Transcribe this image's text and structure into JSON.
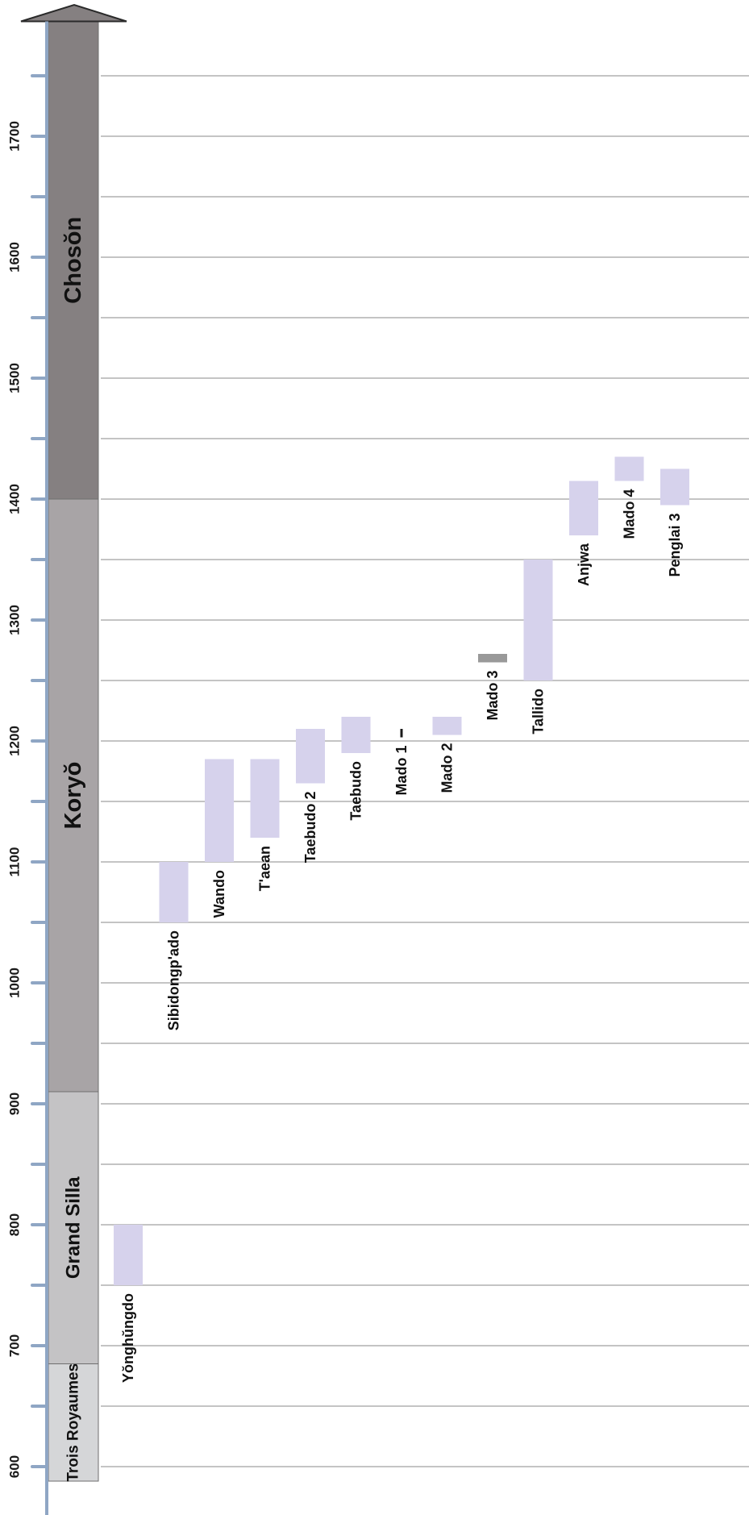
{
  "chart_data": {
    "type": "bar",
    "orientation": "floating-range",
    "ylim": [
      588,
      1845
    ],
    "y_ticks": [
      600,
      700,
      800,
      900,
      1000,
      1100,
      1200,
      1300,
      1400,
      1500,
      1600,
      1700
    ],
    "y_tick_labels": [
      "600",
      "700",
      "800",
      "900",
      "1000",
      "1100",
      "1200",
      "1300",
      "1400",
      "1500",
      "1600",
      "1700"
    ],
    "grid": true,
    "periods": [
      {
        "label": "Trois Royaumes",
        "start": 588,
        "end": 685,
        "color": "#d5d6d8"
      },
      {
        "label": "Grand Silla",
        "start": 685,
        "end": 910,
        "color": "#c4c3c5"
      },
      {
        "label": "Koryŏ",
        "start": 910,
        "end": 1400,
        "color": "#a8a4a6"
      },
      {
        "label": "Chosŏn",
        "start": 1400,
        "end": 1795,
        "color": "#858081"
      }
    ],
    "sites": [
      {
        "label": "Yŏnghŭngdo",
        "start": 750,
        "end": 800,
        "color": "#d6d2ec"
      },
      {
        "label": "Sibidongp'ado",
        "start": 1050,
        "end": 1100,
        "color": "#d6d2ec"
      },
      {
        "label": "Wando",
        "start": 1100,
        "end": 1185,
        "color": "#d6d2ec"
      },
      {
        "label": "T'aean",
        "start": 1120,
        "end": 1185,
        "color": "#d6d2ec"
      },
      {
        "label": "Taebudo 2",
        "start": 1165,
        "end": 1210,
        "color": "#d6d2ec"
      },
      {
        "label": "Taebudo",
        "start": 1190,
        "end": 1220,
        "color": "#d6d2ec"
      },
      {
        "label": "Mado 1",
        "start": 1203,
        "end": 1210,
        "color": "#1a1a1a"
      },
      {
        "label": "Mado 2",
        "start": 1205,
        "end": 1220,
        "color": "#d6d2ec"
      },
      {
        "label": "Mado 3",
        "start": 1265,
        "end": 1272,
        "color": "#8e8e8e"
      },
      {
        "label": "Tallido",
        "start": 1250,
        "end": 1350,
        "color": "#d6d2ec"
      },
      {
        "label": "Anjwa",
        "start": 1370,
        "end": 1415,
        "color": "#d6d2ec"
      },
      {
        "label": "Mado 4",
        "start": 1415,
        "end": 1435,
        "color": "#d6d2ec"
      },
      {
        "label": "Penglai 3",
        "start": 1395,
        "end": 1425,
        "color": "#d6d2ec"
      }
    ],
    "colors": {
      "axis_line": "#8fa6c4",
      "gridline": "#8a8a8a",
      "arrow_outline": "#2a2a2a"
    }
  }
}
